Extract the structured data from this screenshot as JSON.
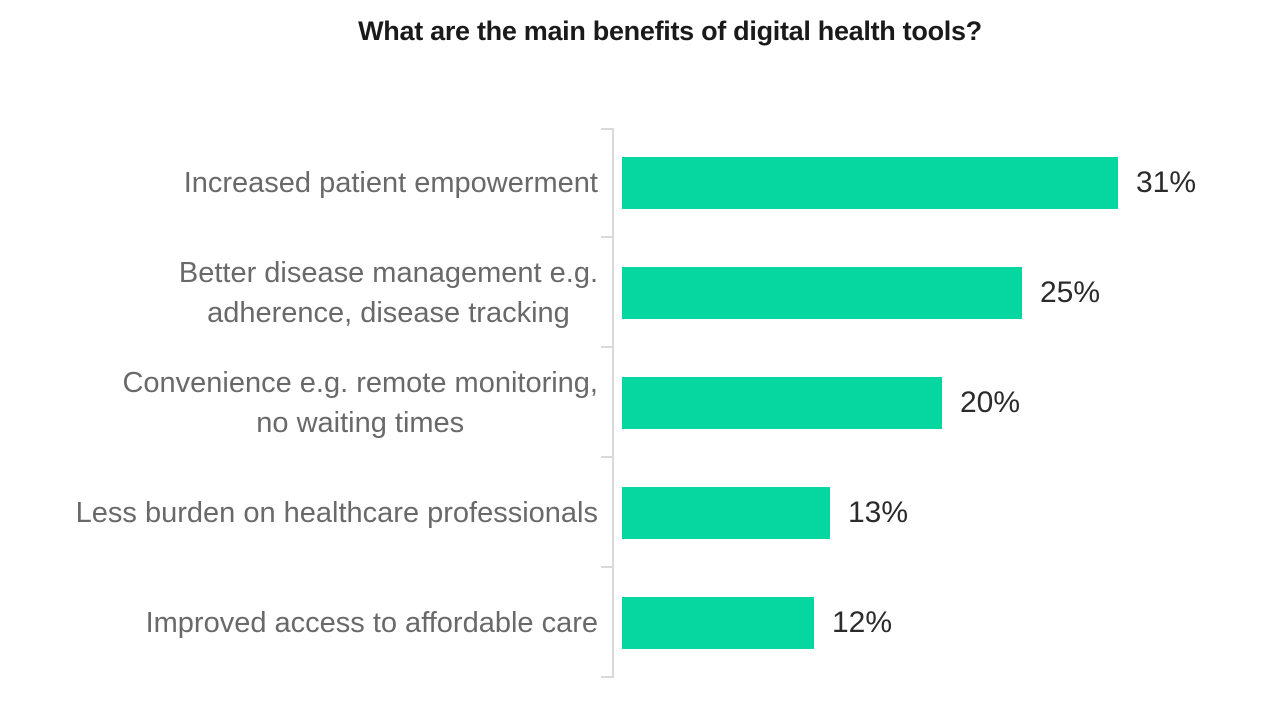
{
  "chart_data": {
    "type": "bar",
    "orientation": "horizontal",
    "title": "What are the main benefits of digital health tools?",
    "categories": [
      "Increased patient empowerment",
      "Better disease management e.g. adherence, disease tracking",
      "Convenience e.g. remote monitoring, no waiting times",
      "Less burden on healthcare professionals",
      "Improved access to affordable care"
    ],
    "label_lines": [
      [
        "Increased patient empowerment"
      ],
      [
        "Better disease management e.g.",
        "adherence, disease tracking"
      ],
      [
        "Convenience e.g. remote monitoring,",
        "no waiting times"
      ],
      [
        "Less burden on healthcare professionals"
      ],
      [
        "Improved access to affordable care"
      ]
    ],
    "values": [
      31,
      25,
      20,
      13,
      12
    ],
    "value_labels": [
      "31%",
      "25%",
      "20%",
      "13%",
      "12%"
    ],
    "xlabel": "",
    "ylabel": "",
    "grid": false,
    "legend": false,
    "colors": {
      "bar": "#06d6a0",
      "category_label": "#696969",
      "value_label": "#2b2b2b",
      "axis_line": "#d9d9d9",
      "title": "#1a1a1a",
      "background": "#ffffff"
    }
  }
}
